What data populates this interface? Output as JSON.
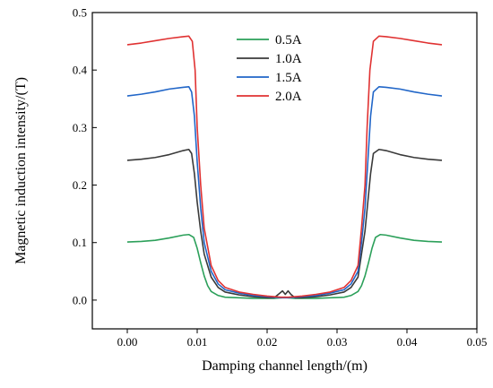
{
  "chart_data": {
    "type": "line",
    "title": "",
    "xlabel": "Damping channel length/(m)",
    "ylabel": "Magnetic induction intensity/(T)",
    "xlim": [
      -0.005,
      0.05
    ],
    "ylim": [
      -0.05,
      0.5
    ],
    "xticks": [
      0.0,
      0.01,
      0.02,
      0.03,
      0.04,
      0.05
    ],
    "xtick_labels": [
      "0.00",
      "0.01",
      "0.02",
      "0.03",
      "0.04",
      "0.05"
    ],
    "yticks": [
      0.0,
      0.1,
      0.2,
      0.3,
      0.4,
      0.5
    ],
    "ytick_labels": [
      "0.0",
      "0.1",
      "0.2",
      "0.3",
      "0.4",
      "0.5"
    ],
    "grid": false,
    "legend_position": "top-center",
    "series": [
      {
        "name": "0.5A",
        "color": "#2ca05a",
        "x": [
          0.0,
          0.002,
          0.004,
          0.006,
          0.008,
          0.0088,
          0.0095,
          0.01,
          0.0105,
          0.011,
          0.0115,
          0.012,
          0.013,
          0.014,
          0.016,
          0.018,
          0.02,
          0.021,
          0.022,
          0.0225,
          0.023,
          0.024,
          0.025,
          0.027,
          0.029,
          0.031,
          0.032,
          0.033,
          0.0335,
          0.034,
          0.0345,
          0.035,
          0.0355,
          0.0362,
          0.037,
          0.039,
          0.041,
          0.043,
          0.045
        ],
        "y": [
          0.101,
          0.102,
          0.104,
          0.108,
          0.113,
          0.114,
          0.109,
          0.09,
          0.065,
          0.042,
          0.025,
          0.015,
          0.008,
          0.005,
          0.004,
          0.003,
          0.003,
          0.003,
          0.004,
          0.005,
          0.004,
          0.003,
          0.003,
          0.003,
          0.004,
          0.005,
          0.008,
          0.015,
          0.025,
          0.042,
          0.065,
          0.09,
          0.109,
          0.114,
          0.113,
          0.108,
          0.104,
          0.102,
          0.101
        ]
      },
      {
        "name": "1.0A",
        "color": "#3a3a3a",
        "x": [
          0.0,
          0.002,
          0.004,
          0.006,
          0.008,
          0.0088,
          0.0092,
          0.0096,
          0.01,
          0.0105,
          0.011,
          0.012,
          0.013,
          0.014,
          0.016,
          0.018,
          0.02,
          0.021,
          0.0218,
          0.0222,
          0.0226,
          0.023,
          0.0234,
          0.024,
          0.025,
          0.027,
          0.029,
          0.031,
          0.032,
          0.033,
          0.0335,
          0.034,
          0.0344,
          0.0348,
          0.0352,
          0.036,
          0.037,
          0.039,
          0.041,
          0.043,
          0.045
        ],
        "y": [
          0.243,
          0.245,
          0.248,
          0.253,
          0.26,
          0.262,
          0.255,
          0.22,
          0.17,
          0.12,
          0.08,
          0.04,
          0.022,
          0.014,
          0.009,
          0.006,
          0.004,
          0.004,
          0.012,
          0.016,
          0.01,
          0.016,
          0.01,
          0.004,
          0.004,
          0.006,
          0.009,
          0.014,
          0.022,
          0.04,
          0.08,
          0.12,
          0.17,
          0.22,
          0.255,
          0.262,
          0.26,
          0.253,
          0.248,
          0.245,
          0.243
        ]
      },
      {
        "name": "1.5A",
        "color": "#2166c8",
        "x": [
          0.0,
          0.002,
          0.004,
          0.006,
          0.008,
          0.0088,
          0.0092,
          0.0096,
          0.01,
          0.0105,
          0.011,
          0.012,
          0.013,
          0.014,
          0.016,
          0.018,
          0.02,
          0.021,
          0.022,
          0.023,
          0.024,
          0.025,
          0.027,
          0.029,
          0.031,
          0.032,
          0.033,
          0.0335,
          0.034,
          0.0344,
          0.0348,
          0.0352,
          0.036,
          0.037,
          0.039,
          0.041,
          0.043,
          0.045
        ],
        "y": [
          0.355,
          0.358,
          0.362,
          0.367,
          0.37,
          0.371,
          0.362,
          0.32,
          0.24,
          0.16,
          0.1,
          0.05,
          0.028,
          0.018,
          0.012,
          0.008,
          0.006,
          0.005,
          0.004,
          0.004,
          0.005,
          0.006,
          0.008,
          0.012,
          0.018,
          0.028,
          0.05,
          0.1,
          0.16,
          0.24,
          0.32,
          0.362,
          0.371,
          0.37,
          0.367,
          0.362,
          0.358,
          0.355
        ]
      },
      {
        "name": "2.0A",
        "color": "#e03232",
        "x": [
          0.0,
          0.002,
          0.004,
          0.006,
          0.008,
          0.0088,
          0.0093,
          0.0097,
          0.01,
          0.0105,
          0.011,
          0.012,
          0.013,
          0.014,
          0.016,
          0.018,
          0.02,
          0.021,
          0.022,
          0.023,
          0.024,
          0.025,
          0.027,
          0.029,
          0.031,
          0.032,
          0.033,
          0.0335,
          0.034,
          0.0343,
          0.0347,
          0.0352,
          0.036,
          0.037,
          0.039,
          0.041,
          0.043,
          0.045
        ],
        "y": [
          0.444,
          0.447,
          0.451,
          0.455,
          0.458,
          0.459,
          0.45,
          0.4,
          0.3,
          0.2,
          0.125,
          0.06,
          0.034,
          0.022,
          0.014,
          0.01,
          0.007,
          0.006,
          0.005,
          0.005,
          0.006,
          0.007,
          0.01,
          0.014,
          0.022,
          0.034,
          0.06,
          0.125,
          0.2,
          0.3,
          0.4,
          0.45,
          0.459,
          0.458,
          0.455,
          0.451,
          0.447,
          0.444
        ]
      }
    ]
  }
}
